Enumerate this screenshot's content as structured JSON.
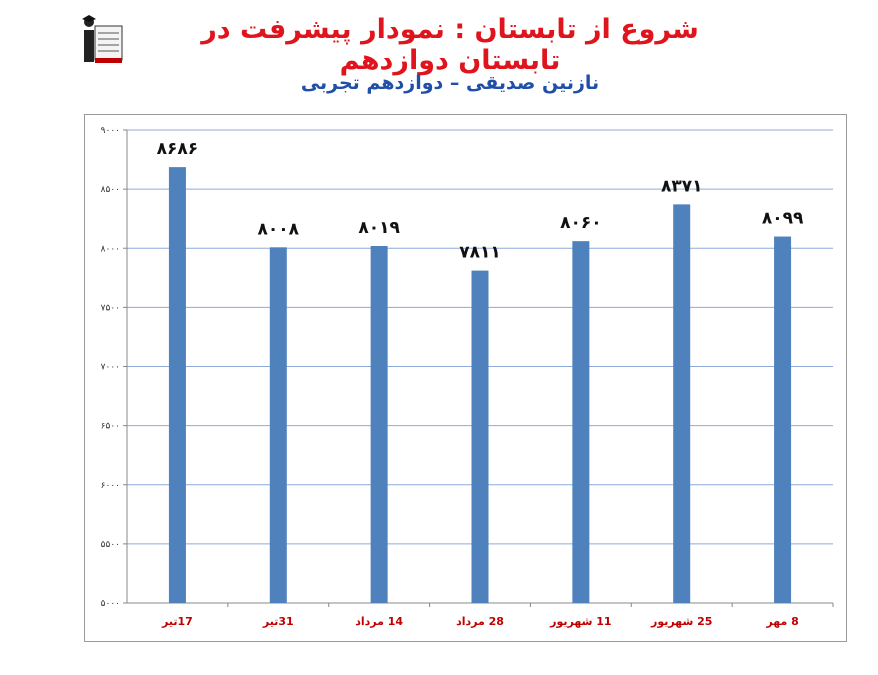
{
  "header": {
    "title": "شروع از تابستان : نمودار پیشرفت در تابستان دوازدهم",
    "subtitle": "نازنین صدیقی – دوازدهم تجربی"
  },
  "logo": {
    "icon": "graduate-logo-icon"
  },
  "colors": {
    "title": "#e0141c",
    "subtitle": "#1f4fa8",
    "bar": "#4f81bd",
    "grid": "#8eaadb",
    "xtick": "#c00000"
  },
  "chart_data": {
    "type": "bar",
    "categories": [
      "17تیر",
      "31تیر",
      "14 مرداد",
      "28 مرداد",
      "11 شهریور",
      "25 شهریور",
      "8 مهر"
    ],
    "values": [
      8686,
      8008,
      8019,
      7811,
      8060,
      8371,
      8099
    ],
    "data_labels": [
      "۸۶۸۶",
      "۸۰۰۸",
      "۸۰۱۹",
      "۷۸۱۱",
      "۸۰۶۰",
      "۸۳۷۱",
      "۸۰۹۹"
    ],
    "ylim": [
      5000,
      9000
    ],
    "yticks": [
      5000,
      5500,
      6000,
      6500,
      7000,
      7500,
      8000,
      8500,
      9000
    ],
    "ytick_labels": [
      "۵۰۰۰",
      "۵۵۰۰",
      "۶۰۰۰",
      "۶۵۰۰",
      "۷۰۰۰",
      "۷۵۰۰",
      "۸۰۰۰",
      "۸۵۰۰",
      "۹۰۰۰"
    ],
    "grid": true,
    "legend": "none"
  }
}
